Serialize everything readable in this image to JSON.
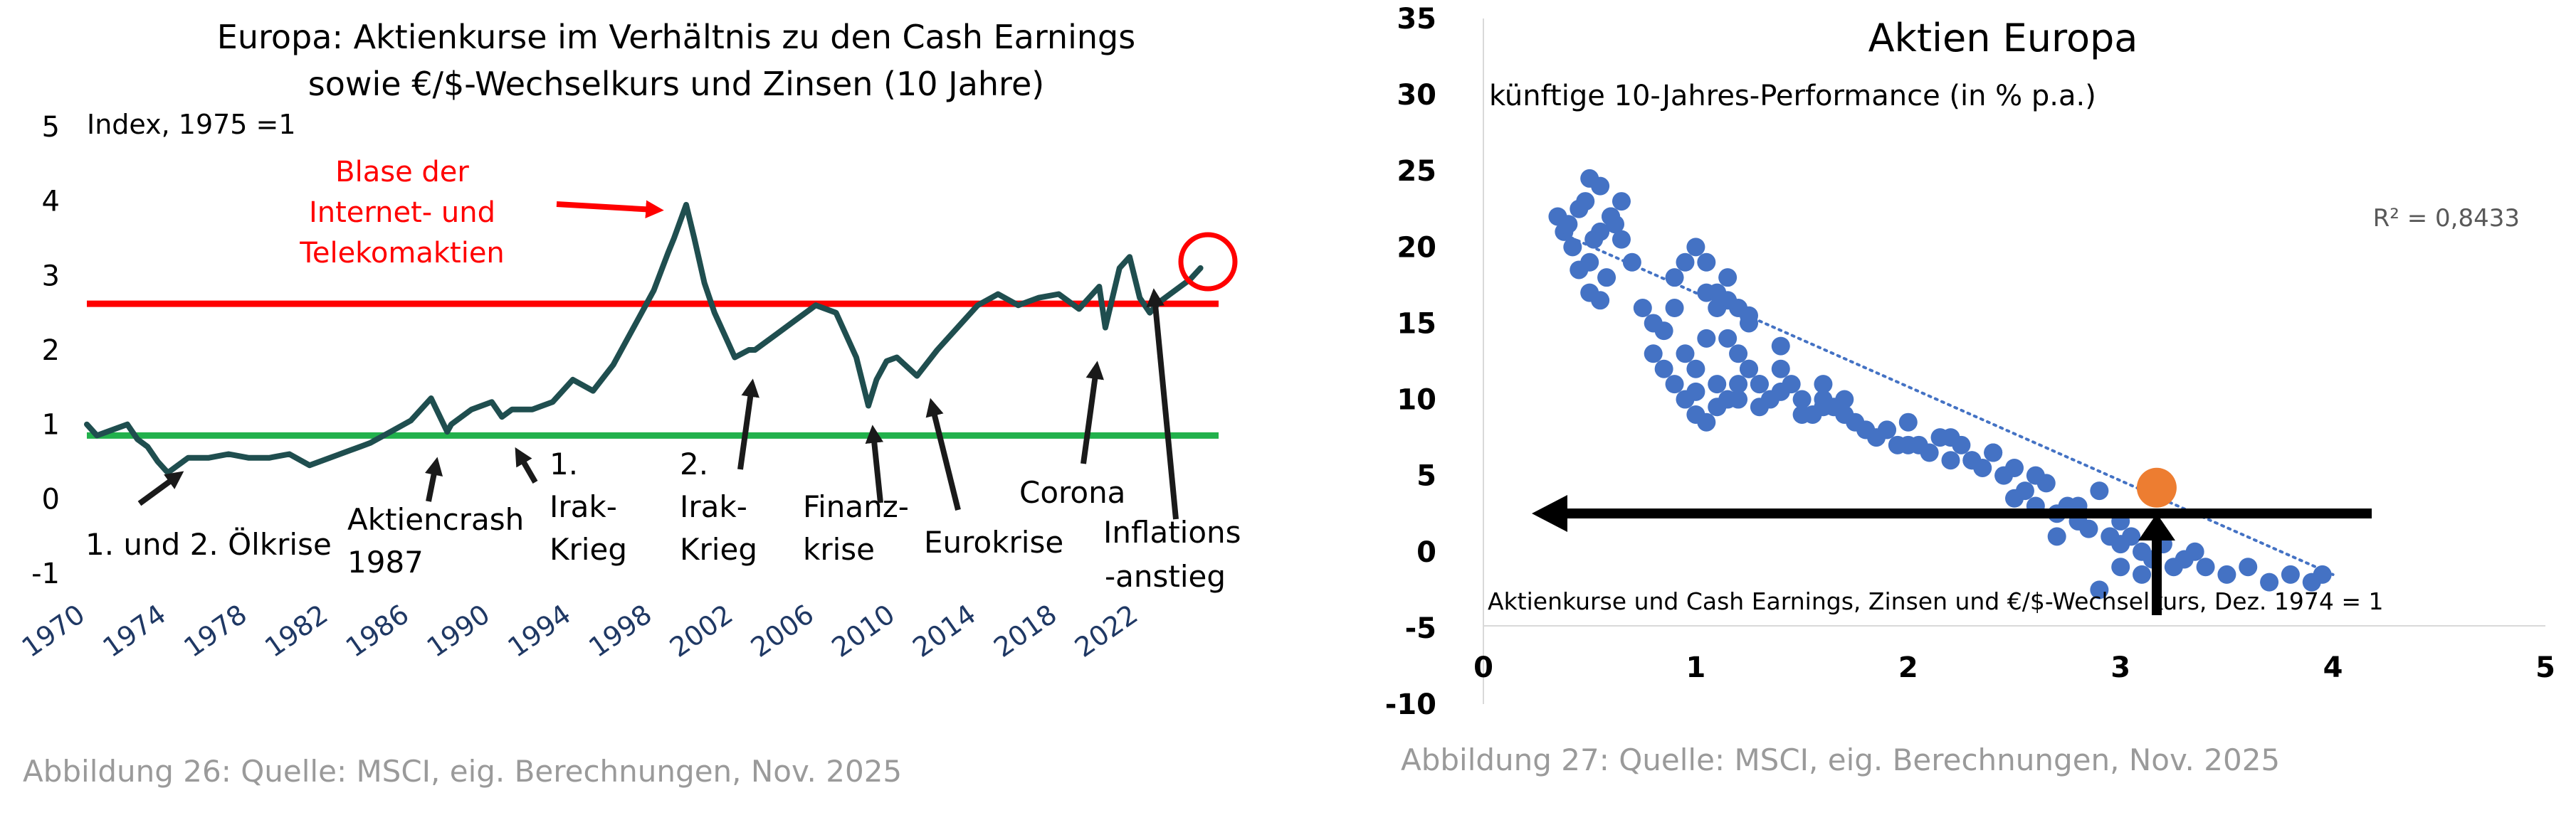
{
  "chart_data": [
    {
      "type": "line",
      "title": "Europa: Aktienkurse im Verhältnis zu den Cash Earnings",
      "subtitle": "sowie €/$-Wechselkurs und Zinsen (10 Jahre)",
      "ylabel": "Index, 1975 =1",
      "xlim": [
        1970,
        2026
      ],
      "ylim": [
        -1,
        5
      ],
      "yticks": [
        "5",
        "4",
        "3",
        "2",
        "1",
        "0",
        "-1"
      ],
      "xticks": [
        "1970",
        "1974",
        "1978",
        "1982",
        "1986",
        "1990",
        "1994",
        "1998",
        "2002",
        "2006",
        "2010",
        "2014",
        "2018",
        "2022"
      ],
      "grid": false,
      "line_color": "#1f4e4f",
      "reference_lines": [
        {
          "value": 2.62,
          "color": "#ff0000"
        },
        {
          "value": 0.85,
          "color": "#22b14c"
        }
      ],
      "series": [
        {
          "x": [
            1970,
            1970.5,
            1971,
            1971.5,
            1972,
            1972.5,
            1973,
            1973.5,
            1974,
            1974.5,
            1975,
            1976,
            1977,
            1978,
            1979,
            1980,
            1981,
            1982,
            1983,
            1984,
            1985,
            1986,
            1986.5,
            1987,
            1987.8,
            1988,
            1989,
            1990,
            1990.5,
            1991,
            1992,
            1993,
            1994,
            1995,
            1996,
            1997,
            1998,
            1998.7,
            1999,
            1999.6,
            2000,
            2000.5,
            2001,
            2001.5,
            2002,
            2002.7,
            2003,
            2004,
            2005,
            2006,
            2007,
            2008,
            2008.6,
            2009,
            2009.5,
            2010,
            2011,
            2012,
            2013,
            2014,
            2015,
            2016,
            2017,
            2018,
            2019,
            2020,
            2020.3,
            2021,
            2021.5,
            2022,
            2022.5,
            2023,
            2024,
            2024.5,
            2025
          ],
          "values": [
            1.0,
            0.85,
            0.9,
            0.95,
            1.0,
            0.8,
            0.7,
            0.5,
            0.35,
            0.45,
            0.55,
            0.55,
            0.6,
            0.55,
            0.55,
            0.6,
            0.45,
            0.55,
            0.65,
            0.75,
            0.9,
            1.05,
            1.2,
            1.35,
            0.9,
            1.0,
            1.2,
            1.3,
            1.1,
            1.2,
            1.2,
            1.3,
            1.6,
            1.45,
            1.8,
            2.3,
            2.8,
            3.3,
            3.5,
            3.95,
            3.5,
            2.9,
            2.5,
            2.2,
            1.9,
            2.0,
            2.0,
            2.2,
            2.4,
            2.6,
            2.5,
            1.9,
            1.25,
            1.6,
            1.85,
            1.9,
            1.65,
            2.0,
            2.3,
            2.6,
            2.75,
            2.6,
            2.7,
            2.75,
            2.55,
            2.85,
            2.3,
            3.1,
            3.25,
            2.7,
            2.5,
            2.65,
            2.85,
            2.95,
            3.1
          ]
        }
      ],
      "annotations": [
        {
          "text": "Blase der",
          "color": "#ff0000"
        },
        {
          "text": "Internet- und",
          "color": "#ff0000"
        },
        {
          "text": "Telekomaktien",
          "color": "#ff0000"
        },
        {
          "text": "1. und 2. Ölkrise"
        },
        {
          "text": "Aktiencrash"
        },
        {
          "text": "1987"
        },
        {
          "text": "1."
        },
        {
          "text": "Irak-"
        },
        {
          "text": "Krieg"
        },
        {
          "text": "2."
        },
        {
          "text": "Irak-"
        },
        {
          "text": "Krieg"
        },
        {
          "text": "Finanz-"
        },
        {
          "text": "krise"
        },
        {
          "text": "Eurokrise"
        },
        {
          "text": "Corona"
        },
        {
          "text": "Inflations"
        },
        {
          "text": "-anstieg"
        }
      ]
    },
    {
      "type": "scatter",
      "title": "Aktien Europa",
      "ylabel": "künftige 10-Jahres-Performance (in % p.a.)",
      "xlabel": "Aktienkurse und Cash Earnings, Zinsen und €/$-Wechselkurs, Dez. 1974 = 1",
      "xlim": [
        0,
        5
      ],
      "ylim": [
        -10,
        35
      ],
      "xticks": [
        "0",
        "1",
        "2",
        "3",
        "4",
        "5"
      ],
      "yticks": [
        "35",
        "30",
        "25",
        "20",
        "15",
        "10",
        "5",
        "0",
        "-5",
        "-10"
      ],
      "grid": false,
      "point_color": "#4472c4",
      "highlight_color": "#ed7d31",
      "r_squared": "R² = 0,8433",
      "trend_line": {
        "x": [
          0.35,
          4.0
        ],
        "y": [
          21.0,
          -1.5
        ]
      },
      "highlight_point": {
        "x": 3.17,
        "y": 4.2
      },
      "series": [
        {
          "x": [
            0.35,
            0.38,
            0.4,
            0.42,
            0.45,
            0.48,
            0.5,
            0.5,
            0.52,
            0.55,
            0.58,
            0.6,
            0.62,
            0.65,
            0.7,
            0.45,
            0.5,
            0.55,
            0.6,
            0.75,
            0.8,
            0.85,
            0.9,
            0.95,
            1.0,
            1.05,
            1.1,
            1.15,
            1.2,
            1.25,
            0.8,
            0.85,
            0.9,
            0.95,
            1.0,
            1.05,
            1.1,
            1.15,
            1.2,
            1.25,
            1.3,
            0.9,
            0.95,
            1.0,
            1.05,
            1.1,
            1.15,
            1.2,
            1.25,
            1.3,
            1.35,
            1.4,
            1.45,
            1.5,
            1.55,
            1.6,
            1.65,
            1.7,
            1.75,
            1.8,
            1.85,
            1.9,
            1.95,
            2.0,
            2.05,
            2.1,
            2.15,
            2.2,
            2.25,
            2.3,
            2.35,
            2.4,
            2.45,
            2.5,
            2.55,
            2.6,
            2.65,
            2.7,
            2.75,
            2.8,
            2.85,
            2.9,
            2.95,
            3.0,
            3.05,
            3.1,
            3.15,
            3.2,
            3.25,
            3.3,
            3.35,
            3.4,
            3.5,
            3.6,
            3.7,
            3.8,
            3.9,
            3.95,
            1.0,
            1.1,
            1.2,
            1.3,
            1.4,
            1.5,
            1.6,
            1.7,
            1.8,
            2.0,
            2.2,
            2.4,
            2.6,
            2.8,
            3.0,
            3.0,
            2.9,
            3.1,
            2.7,
            2.5,
            2.3,
            1.9,
            1.6,
            1.4,
            1.25,
            0.65,
            0.55,
            1.05,
            1.15
          ],
          "y": [
            22,
            21,
            21.5,
            20,
            22.5,
            23,
            24.5,
            19,
            20.5,
            21,
            18,
            22,
            21.5,
            23,
            19,
            18.5,
            17,
            16.5,
            22,
            16,
            15,
            14.5,
            16,
            13,
            12,
            14,
            17,
            18,
            16,
            15,
            13,
            12,
            11,
            10,
            9,
            8.5,
            9.5,
            10,
            11,
            12,
            11,
            18,
            19,
            20,
            17,
            16,
            14,
            13,
            12,
            11,
            10,
            12,
            11,
            10,
            9,
            10,
            9.5,
            9,
            8.5,
            8,
            7.5,
            8,
            7,
            8.5,
            7,
            6.5,
            7.5,
            6,
            7,
            6,
            5.5,
            6.5,
            5,
            5.5,
            4,
            3,
            4.5,
            2.5,
            3,
            2,
            1.5,
            4,
            1,
            0.5,
            1,
            0,
            -0.5,
            0.5,
            -1,
            -0.5,
            0,
            -1,
            -1.5,
            -1,
            -2,
            -1.5,
            -2,
            -1.5,
            10.5,
            11,
            10,
            9.5,
            10.5,
            9,
            9.5,
            10,
            8,
            7,
            7.5,
            6.5,
            5,
            3,
            2,
            -1,
            -2.5,
            -1.5,
            1,
            3.5,
            6,
            8,
            11,
            13.5,
            15.5,
            20.5,
            24,
            19,
            16.5
          ]
        }
      ]
    }
  ],
  "captions": {
    "left": "Abbildung 26: Quelle: MSCI, eig. Berechnungen, Nov. 2025",
    "right": "Abbildung 27: Quelle: MSCI, eig. Berechnungen, Nov. 2025"
  }
}
